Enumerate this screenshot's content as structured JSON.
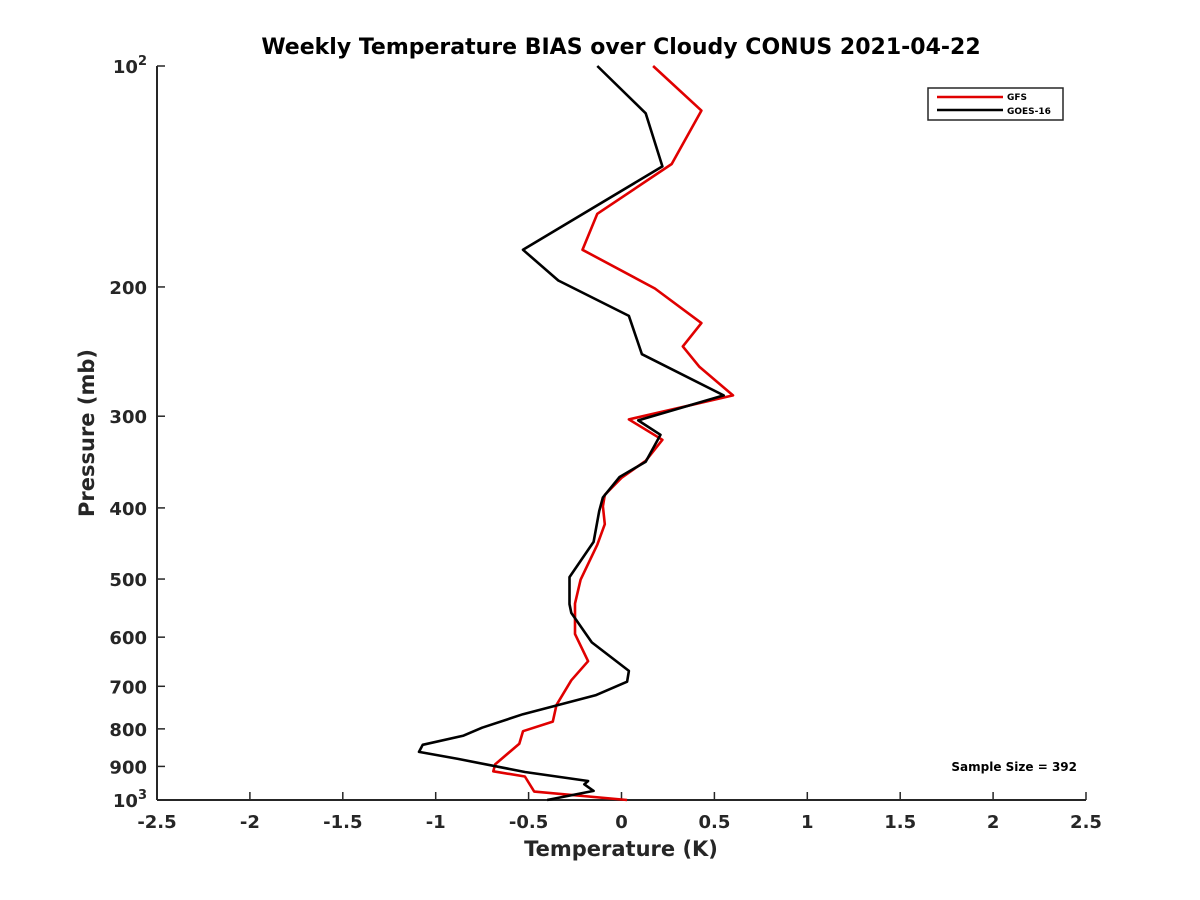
{
  "chart_data": {
    "type": "line",
    "title": "Weekly Temperature BIAS over Cloudy CONUS 2021-04-22",
    "xlabel": "Temperature (K)",
    "ylabel": "Pressure (mb)",
    "xlim": [
      -2.5,
      2.5
    ],
    "ylim": [
      100,
      1000
    ],
    "yscale": "log",
    "y_reversed": true,
    "grid": false,
    "legend_position": "top-right",
    "xticks": [
      {
        "value": -2.5,
        "label": "-2.5"
      },
      {
        "value": -2,
        "label": "-2"
      },
      {
        "value": -1.5,
        "label": "-1.5"
      },
      {
        "value": -1,
        "label": "-1"
      },
      {
        "value": -0.5,
        "label": "-0.5"
      },
      {
        "value": 0,
        "label": "0"
      },
      {
        "value": 0.5,
        "label": "0.5"
      },
      {
        "value": 1,
        "label": "1"
      },
      {
        "value": 1.5,
        "label": "1.5"
      },
      {
        "value": 2,
        "label": "2"
      },
      {
        "value": 2.5,
        "label": "2.5"
      }
    ],
    "yticks": [
      {
        "value": 100,
        "label": "10",
        "sup": "2"
      },
      {
        "value": 200,
        "label": "200",
        "sup": ""
      },
      {
        "value": 300,
        "label": "300",
        "sup": ""
      },
      {
        "value": 400,
        "label": "400",
        "sup": ""
      },
      {
        "value": 500,
        "label": "500",
        "sup": ""
      },
      {
        "value": 600,
        "label": "600",
        "sup": ""
      },
      {
        "value": 700,
        "label": "700",
        "sup": ""
      },
      {
        "value": 800,
        "label": "800",
        "sup": ""
      },
      {
        "value": 900,
        "label": "900",
        "sup": ""
      },
      {
        "value": 1000,
        "label": "10",
        "sup": "3"
      }
    ],
    "series": [
      {
        "name": "GFS",
        "color": "#e00000",
        "x": [
          0.17,
          0.43,
          0.27,
          -0.13,
          -0.21,
          0.18,
          0.43,
          0.33,
          0.42,
          0.6,
          0.04,
          0.22,
          0.13,
          0.0,
          -0.09,
          -0.1,
          -0.09,
          -0.13,
          -0.22,
          -0.25,
          -0.25,
          -0.18,
          -0.27,
          -0.35,
          -0.37,
          -0.53,
          -0.55,
          -0.68,
          -0.69,
          -0.52,
          -0.47,
          0.03
        ],
        "y": [
          100,
          115,
          136,
          159,
          178,
          201,
          224,
          241,
          257,
          281,
          303,
          323,
          345,
          364,
          384,
          398,
          421,
          449,
          501,
          540,
          594,
          647,
          687,
          742,
          782,
          806,
          838,
          894,
          914,
          929,
          974,
          1000
        ]
      },
      {
        "name": "GOES-16",
        "color": "#000000",
        "x": [
          -0.13,
          0.13,
          0.22,
          -0.53,
          -0.34,
          0.04,
          0.11,
          0.55,
          0.09,
          0.21,
          0.13,
          -0.01,
          -0.1,
          -0.12,
          -0.15,
          -0.28,
          -0.28,
          -0.27,
          -0.16,
          0.04,
          0.03,
          -0.14,
          -0.53,
          -0.75,
          -0.85,
          -1.07,
          -1.09,
          -0.88,
          -0.52,
          -0.18,
          -0.2,
          -0.15,
          -0.4
        ],
        "y": [
          100,
          116,
          137,
          178,
          196,
          219,
          247,
          281,
          304,
          318,
          346,
          363,
          387,
          404,
          445,
          497,
          541,
          556,
          610,
          667,
          690,
          720,
          764,
          797,
          817,
          841,
          860,
          879,
          916,
          942,
          952,
          972,
          1000
        ]
      }
    ],
    "annotations": [
      "Sample Size = 392"
    ]
  }
}
